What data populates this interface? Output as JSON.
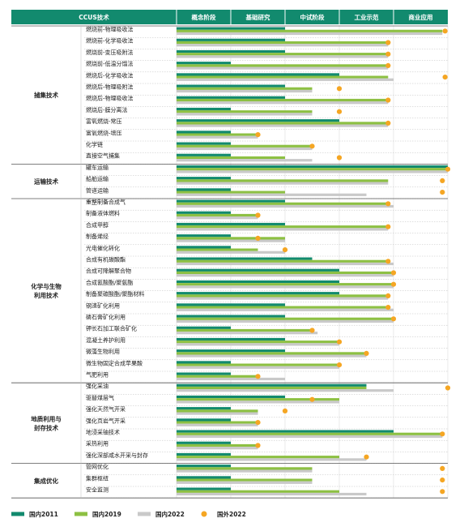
{
  "chart_data": {
    "type": "bar",
    "orientation": "horizontal",
    "column_header": "CCUS技术",
    "stages": [
      "概念阶段",
      "基础研究",
      "中试阶段",
      "工业示范",
      "商业应用"
    ],
    "x_range": [
      0,
      5
    ],
    "series": [
      {
        "name": "国内2011",
        "color": "#128a6e",
        "mark": "bar"
      },
      {
        "name": "国内2019",
        "color": "#8dc043",
        "mark": "bar"
      },
      {
        "name": "国内2022",
        "color": "#c9c9c9",
        "mark": "bar"
      },
      {
        "name": "国外2022",
        "color": "#f5a623",
        "mark": "dot"
      }
    ],
    "categories": [
      {
        "name": "捕集技术",
        "rows": [
          {
            "label": "燃烧前-物理吸收法",
            "values": [
              2.0,
              4.9,
              4.9,
              4.95
            ]
          },
          {
            "label": "燃烧前-化学吸收法",
            "values": [
              2.0,
              3.9,
              3.9,
              3.9
            ]
          },
          {
            "label": "燃烧前-变压吸附法",
            "values": [
              2.0,
              3.9,
              3.9,
              3.9
            ]
          },
          {
            "label": "燃烧前-低温分馏法",
            "values": [
              1.0,
              3.9,
              3.9,
              3.9
            ]
          },
          {
            "label": "燃烧后-化学吸收法",
            "values": [
              3.0,
              3.9,
              4.0,
              4.95
            ]
          },
          {
            "label": "燃烧后-物理吸附法",
            "values": [
              2.0,
              2.5,
              2.5,
              3.0
            ]
          },
          {
            "label": "燃烧后-物理吸收法",
            "values": [
              2.0,
              3.9,
              3.9,
              3.9
            ]
          },
          {
            "label": "燃烧后-膜分离法",
            "values": [
              1.0,
              2.5,
              2.5,
              3.0
            ]
          },
          {
            "label": "富氧燃烧-常压",
            "values": [
              3.0,
              3.9,
              3.9,
              3.9
            ]
          },
          {
            "label": "富氧燃烧-增压",
            "values": [
              1.0,
              1.5,
              1.5,
              1.5
            ]
          },
          {
            "label": "化学链",
            "values": [
              1.0,
              2.5,
              2.5,
              2.5
            ]
          },
          {
            "label": "直接空气捕集",
            "values": [
              1.0,
              2.0,
              2.5,
              3.0
            ]
          }
        ]
      },
      {
        "name": "运输技术",
        "rows": [
          {
            "label": "罐车运输",
            "values": [
              5.0,
              5.0,
              5.0,
              5.0
            ]
          },
          {
            "label": "船舶运输",
            "values": [
              1.0,
              3.9,
              3.9,
              4.9
            ]
          },
          {
            "label": "管道运输",
            "values": [
              1.0,
              2.0,
              3.5,
              4.9
            ]
          }
        ]
      },
      {
        "name": "化学与生物\n利用技术",
        "rows": [
          {
            "label": "重整制备合成气",
            "values": [
              2.0,
              3.9,
              4.0,
              3.9
            ]
          },
          {
            "label": "制备液体燃料",
            "values": [
              1.0,
              1.5,
              1.5,
              1.5
            ]
          },
          {
            "label": "合成甲醇",
            "values": [
              2.0,
              3.9,
              3.9,
              3.9
            ]
          },
          {
            "label": "制备烯烃",
            "values": [
              1.0,
              2.0,
              2.0,
              1.5
            ]
          },
          {
            "label": "光电催化转化",
            "values": [
              1.0,
              1.5,
              2.0,
              2.0
            ]
          },
          {
            "label": "合成有机碳酸酯",
            "values": [
              2.5,
              3.9,
              4.0,
              3.9
            ]
          },
          {
            "label": "合成可降解聚合物",
            "values": [
              3.0,
              4.0,
              4.0,
              4.0
            ]
          },
          {
            "label": "合成氰酸酯/聚氨酯",
            "values": [
              3.0,
              4.0,
              4.0,
              4.0
            ]
          },
          {
            "label": "制备聚碳酸酯/聚酯材料",
            "values": [
              3.0,
              3.9,
              3.9,
              3.9
            ]
          },
          {
            "label": "钢渣矿化利用",
            "values": [
              2.0,
              3.9,
              4.0,
              3.9
            ]
          },
          {
            "label": "磷石膏矿化利用",
            "values": [
              2.0,
              4.0,
              4.0,
              4.0
            ]
          },
          {
            "label": "钾长石加工联合矿化",
            "values": [
              1.0,
              2.5,
              2.6,
              2.5
            ]
          },
          {
            "label": "混凝土养护利用",
            "values": [
              2.0,
              3.0,
              3.0,
              3.0
            ]
          },
          {
            "label": "微藻生物利用",
            "values": [
              2.0,
              3.5,
              3.5,
              3.5
            ]
          },
          {
            "label": "微生物固定合成苹果酸",
            "values": [
              1.0,
              3.0,
              3.0,
              3.0
            ]
          },
          {
            "label": "气肥利用",
            "values": [
              1.0,
              1.5,
              2.0,
              1.5
            ]
          }
        ]
      },
      {
        "name": "地质利用与\n封存技术",
        "rows": [
          {
            "label": "强化采油",
            "values": [
              3.5,
              3.5,
              4.0,
              5.0
            ]
          },
          {
            "label": "驱替煤层气",
            "values": [
              2.0,
              3.0,
              3.0,
              2.5
            ]
          },
          {
            "label": "强化天然气开采",
            "values": [
              1.0,
              1.5,
              1.5,
              2.0
            ]
          },
          {
            "label": "强化页岩气开采",
            "values": [
              1.0,
              1.5,
              1.5,
              1.5
            ]
          },
          {
            "label": "地浸采铀技术",
            "values": [
              4.0,
              4.9,
              4.9,
              4.9
            ]
          },
          {
            "label": "采热利用",
            "values": [
              1.0,
              1.5,
              1.5,
              1.5
            ]
          },
          {
            "label": "强化深部咸水开采与封存",
            "values": [
              1.0,
              3.0,
              3.5,
              3.5
            ]
          }
        ]
      },
      {
        "name": "集成优化",
        "rows": [
          {
            "label": "管网优化",
            "values": [
              1.0,
              2.5,
              2.5,
              4.9
            ]
          },
          {
            "label": "集群枢纽",
            "values": [
              1.0,
              2.5,
              2.5,
              4.9
            ]
          },
          {
            "label": "安全监测",
            "values": [
              1.0,
              3.0,
              3.5,
              4.9
            ]
          }
        ]
      }
    ]
  }
}
